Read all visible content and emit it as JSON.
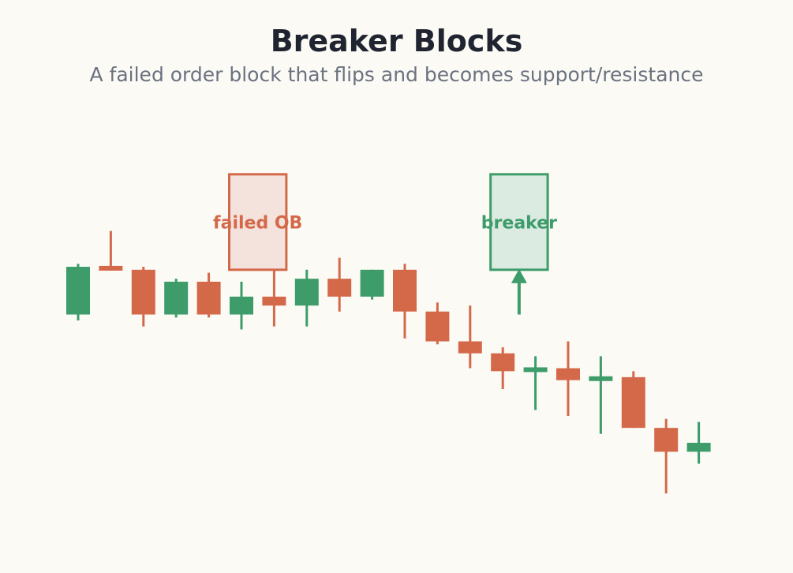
{
  "header": {
    "title": "Breaker Blocks",
    "subtitle": "A failed order block that flips and becomes support/resistance"
  },
  "colors": {
    "bullish": "#3d9c6a",
    "bearish": "#d4694a",
    "background": "#fbfaf5"
  },
  "chart_data": {
    "type": "candlestick",
    "title": "Breaker Blocks",
    "subtitle": "A failed order block that flips and becomes support/resistance",
    "candles": [
      {
        "open": 50.7,
        "high": 52.4,
        "low": 50.5,
        "close": 52.3
      },
      {
        "open": 52.3,
        "high": 53.5,
        "low": 52.2,
        "close": 52.2
      },
      {
        "open": 52.2,
        "high": 52.3,
        "low": 50.3,
        "close": 50.7
      },
      {
        "open": 50.7,
        "high": 51.9,
        "low": 50.6,
        "close": 51.8
      },
      {
        "open": 51.8,
        "high": 52.1,
        "low": 50.6,
        "close": 50.7
      },
      {
        "open": 50.7,
        "high": 51.8,
        "low": 50.2,
        "close": 51.3
      },
      {
        "open": 51.3,
        "high": 52.5,
        "low": 50.3,
        "close": 51.0
      },
      {
        "open": 51.0,
        "high": 52.2,
        "low": 50.3,
        "close": 51.9
      },
      {
        "open": 51.9,
        "high": 52.6,
        "low": 50.8,
        "close": 51.3
      },
      {
        "open": 51.3,
        "high": 52.2,
        "low": 51.2,
        "close": 52.2
      },
      {
        "open": 52.2,
        "high": 52.4,
        "low": 49.9,
        "close": 50.8
      },
      {
        "open": 50.8,
        "high": 51.1,
        "low": 49.7,
        "close": 49.8
      },
      {
        "open": 49.8,
        "high": 51.0,
        "low": 48.9,
        "close": 49.4
      },
      {
        "open": 49.4,
        "high": 49.6,
        "low": 48.2,
        "close": 48.8
      },
      {
        "open": 48.8,
        "high": 49.3,
        "low": 47.5,
        "close": 48.9
      },
      {
        "open": 48.9,
        "high": 49.8,
        "low": 47.3,
        "close": 48.5
      },
      {
        "open": 48.5,
        "high": 49.3,
        "low": 46.7,
        "close": 48.6
      },
      {
        "open": 48.6,
        "high": 48.8,
        "low": 46.9,
        "close": 46.9
      },
      {
        "open": 46.9,
        "high": 47.2,
        "low": 44.7,
        "close": 46.1
      },
      {
        "open": 46.1,
        "high": 47.1,
        "low": 45.7,
        "close": 46.4
      }
    ],
    "annotations": [
      {
        "label": "failed OB",
        "type": "bearish",
        "candle_start": 5,
        "candle_end": 6,
        "low": 52.2,
        "high": 55.4
      },
      {
        "label": "breaker",
        "type": "bullish",
        "candle_start": 13,
        "candle_end": 14,
        "low": 52.2,
        "high": 55.4,
        "arrow_from": 50.7,
        "arrow_to": 52.2
      }
    ]
  }
}
